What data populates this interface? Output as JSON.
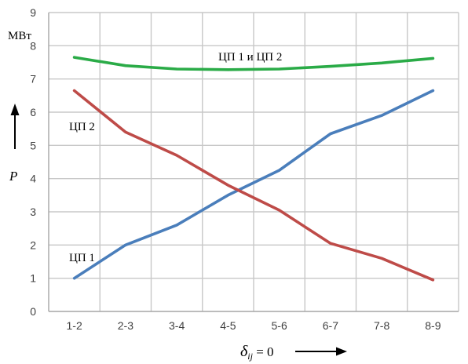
{
  "chart_data": {
    "type": "line",
    "categories": [
      "1-2",
      "2-3",
      "3-4",
      "4-5",
      "5-6",
      "6-7",
      "7-8",
      "8-9"
    ],
    "y_ticks": [
      "0",
      "1",
      "2",
      "3",
      "4",
      "5",
      "6",
      "7",
      "8",
      "9"
    ],
    "ylim": [
      0,
      9
    ],
    "grid": true,
    "y_unit": "МВт",
    "ylabel": "P",
    "xlabel": {
      "symbol": "δ",
      "subscript": "ij",
      "suffix": " = 0"
    },
    "series": [
      {
        "name": "ЦП 1",
        "color": "#4a7ebb",
        "values": [
          1.0,
          2.0,
          2.6,
          3.5,
          4.25,
          5.35,
          5.9,
          6.65
        ]
      },
      {
        "name": "ЦП 2",
        "color": "#be4b48",
        "values": [
          6.65,
          5.4,
          4.7,
          3.8,
          3.05,
          2.05,
          1.6,
          0.95
        ]
      },
      {
        "name": "ЦП 1 и ЦП 2",
        "color": "#2aab47",
        "values": [
          7.65,
          7.4,
          7.3,
          7.28,
          7.3,
          7.38,
          7.48,
          7.62
        ]
      }
    ]
  }
}
